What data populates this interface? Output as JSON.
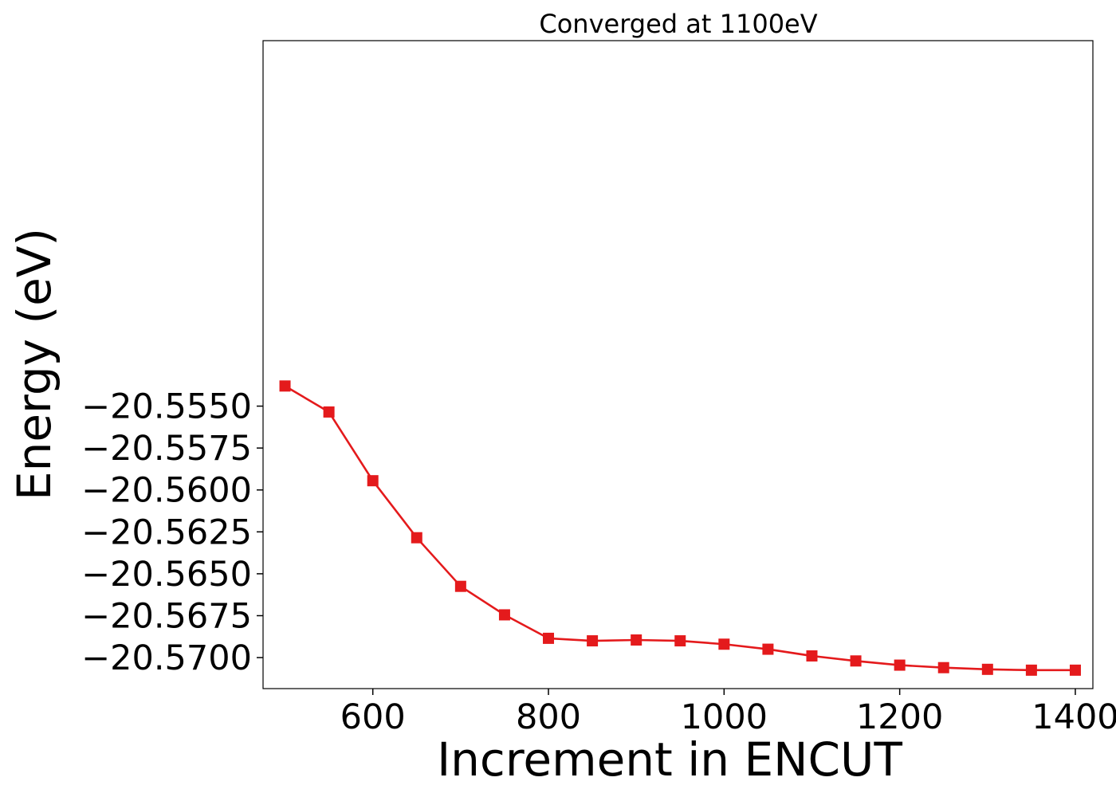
{
  "chart_data": {
    "type": "line",
    "title": "Converged at 1100eV",
    "xlabel": "Increment in ENCUT",
    "ylabel": "Energy (eV)",
    "xlim": [
      475,
      1420
    ],
    "ylim": [
      -20.57185,
      -20.5332
    ],
    "xticks": [
      600,
      800,
      1000,
      1200,
      1400
    ],
    "xtick_labels": [
      "600",
      "800",
      "1000",
      "1200",
      "1400"
    ],
    "yticks": [
      -20.555,
      -20.5575,
      -20.56,
      -20.5625,
      -20.565,
      -20.5675,
      -20.57
    ],
    "ytick_labels": [
      "−20.5550",
      "−20.5575",
      "−20.5600",
      "−20.5625",
      "−20.5650",
      "−20.5675",
      "−20.5700"
    ],
    "grid": false,
    "series": [
      {
        "color": "#e41a1c",
        "marker": "square",
        "x": [
          500,
          550,
          600,
          650,
          700,
          750,
          800,
          850,
          900,
          950,
          1000,
          1050,
          1100,
          1150,
          1200,
          1250,
          1300,
          1350,
          1400
        ],
        "y": [
          -20.5538,
          -20.55535,
          -20.55945,
          -20.56285,
          -20.56575,
          -20.56745,
          -20.56885,
          -20.569,
          -20.56895,
          -20.569,
          -20.5692,
          -20.5695,
          -20.5699,
          -20.5702,
          -20.57045,
          -20.5706,
          -20.5707,
          -20.57075,
          -20.57075
        ]
      }
    ]
  }
}
